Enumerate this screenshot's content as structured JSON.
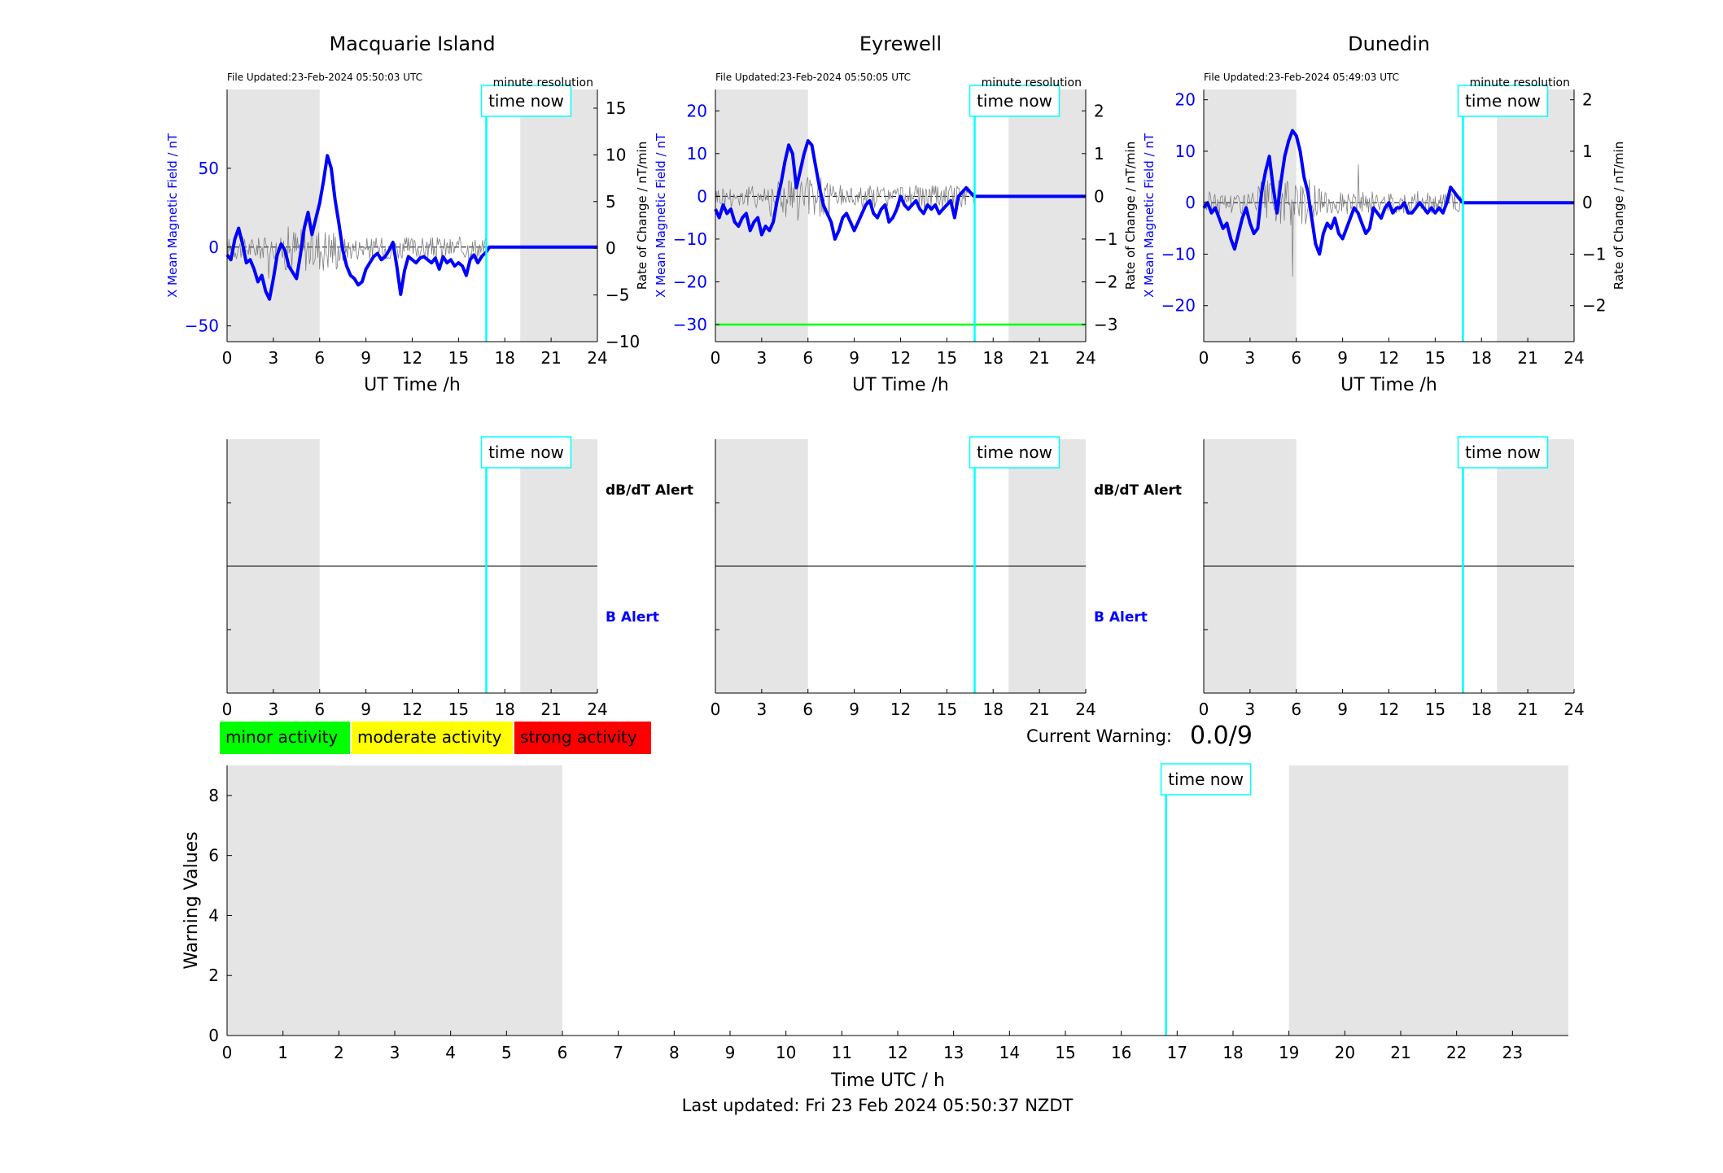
{
  "last_updated": "Last updated: Fri 23 Feb 2024 05:50:37 NZDT",
  "current_warning": {
    "label": "Current Warning:",
    "value": "0.0/9"
  },
  "legend": [
    {
      "label": "minor activity",
      "color": "#00ff00"
    },
    {
      "label": "moderate activity",
      "color": "#ffff00"
    },
    {
      "label": "strong activity",
      "color": "#ff0000"
    }
  ],
  "colors": {
    "shade": "#e5e5e5",
    "now_line": "#00ffff",
    "mag_line": "#0000ff",
    "roc_line": "#808080",
    "threshold": "#00ff00"
  },
  "time_now_label": "time now",
  "resolution_label": "minute resolution",
  "alert_labels": {
    "dbdt": "dB/dT Alert",
    "b": "B Alert"
  },
  "chart_data": [
    {
      "type": "line",
      "title": "Macquarie Island",
      "file_updated": "File Updated:23-Feb-2024 05:50:03 UTC",
      "xlabel": "UT Time /h",
      "ylabel_left": "X Mean Magnetic Field / nT",
      "ylabel_right": "Rate of Change / nT/min",
      "xlim": [
        0,
        24
      ],
      "xticks": [
        0,
        3,
        6,
        9,
        12,
        15,
        18,
        21,
        24
      ],
      "ylim_left": [
        -60,
        100
      ],
      "yticks_left": [
        -50,
        0,
        50
      ],
      "ylim_right": [
        -10,
        17
      ],
      "yticks_right": [
        -10,
        -5,
        0,
        5,
        10,
        15
      ],
      "shaded_hours": [
        [
          0,
          6
        ],
        [
          19,
          24
        ]
      ],
      "time_now": 16.8,
      "threshold": null,
      "series": [
        {
          "values_axis": "left",
          "x": [
            0,
            0.25,
            0.5,
            0.75,
            1,
            1.25,
            1.5,
            1.75,
            2,
            2.25,
            2.5,
            2.75,
            3,
            3.25,
            3.5,
            3.75,
            4,
            4.25,
            4.5,
            4.75,
            5,
            5.25,
            5.5,
            5.75,
            6,
            6.25,
            6.5,
            6.75,
            7,
            7.25,
            7.5,
            7.75,
            8,
            8.25,
            8.5,
            8.75,
            9,
            9.25,
            9.5,
            9.75,
            10,
            10.25,
            10.5,
            10.75,
            11,
            11.25,
            11.5,
            11.75,
            12,
            12.25,
            12.5,
            12.75,
            13,
            13.25,
            13.5,
            13.75,
            14,
            14.25,
            14.5,
            14.75,
            15,
            15.25,
            15.5,
            15.75,
            16,
            16.25,
            16.5,
            16.8,
            17,
            24
          ],
          "y": [
            -5,
            -8,
            5,
            12,
            2,
            -10,
            -8,
            -14,
            -22,
            -18,
            -28,
            -33,
            -20,
            -5,
            2,
            -2,
            -12,
            -16,
            -20,
            -5,
            12,
            22,
            8,
            18,
            28,
            42,
            58,
            50,
            30,
            15,
            -2,
            -12,
            -18,
            -20,
            -24,
            -22,
            -14,
            -10,
            -6,
            -4,
            -8,
            -6,
            -2,
            3,
            -12,
            -30,
            -15,
            -6,
            -8,
            -10,
            -7,
            -6,
            -8,
            -10,
            -7,
            -14,
            -6,
            -10,
            -8,
            -12,
            -10,
            -12,
            -18,
            -8,
            -5,
            -10,
            -6,
            -3,
            0,
            0
          ]
        }
      ]
    },
    {
      "type": "line",
      "title": "Eyrewell",
      "file_updated": "File Updated:23-Feb-2024 05:50:05 UTC",
      "xlabel": "UT Time /h",
      "ylabel_left": "X Mean Magnetic Field / nT",
      "ylabel_right": "Rate of Change / nT/min",
      "xlim": [
        0,
        24
      ],
      "xticks": [
        0,
        3,
        6,
        9,
        12,
        15,
        18,
        21,
        24
      ],
      "ylim_left": [
        -34,
        25
      ],
      "yticks_left": [
        -30,
        -20,
        -10,
        0,
        10,
        20
      ],
      "ylim_right": [
        -3.4,
        2.5
      ],
      "yticks_right": [
        -3,
        -2,
        -1,
        0,
        1,
        2
      ],
      "shaded_hours": [
        [
          0,
          6
        ],
        [
          19,
          24
        ]
      ],
      "time_now": 16.8,
      "threshold": -30,
      "series": [
        {
          "values_axis": "left",
          "x": [
            0,
            0.25,
            0.5,
            0.75,
            1,
            1.25,
            1.5,
            1.75,
            2,
            2.25,
            2.5,
            2.75,
            3,
            3.25,
            3.5,
            3.75,
            4,
            4.25,
            4.5,
            4.75,
            5,
            5.25,
            5.5,
            5.75,
            6,
            6.25,
            6.5,
            6.75,
            7,
            7.25,
            7.5,
            7.75,
            8,
            8.25,
            8.5,
            8.75,
            9,
            9.25,
            9.5,
            9.75,
            10,
            10.25,
            10.5,
            10.75,
            11,
            11.25,
            11.5,
            11.75,
            12,
            12.25,
            12.5,
            12.75,
            13,
            13.25,
            13.5,
            13.75,
            14,
            14.25,
            14.5,
            14.75,
            15,
            15.25,
            15.5,
            15.75,
            16,
            16.25,
            16.5,
            16.8,
            17,
            24
          ],
          "y": [
            -3,
            -5,
            -2,
            -4,
            -3,
            -6,
            -7,
            -5,
            -4,
            -8,
            -6,
            -5,
            -9,
            -7,
            -8,
            -6,
            -1,
            3,
            8,
            12,
            10,
            2,
            6,
            10,
            13,
            12,
            7,
            2,
            -2,
            -4,
            -6,
            -10,
            -8,
            -5,
            -4,
            -6,
            -8,
            -6,
            -4,
            -2,
            -1,
            -4,
            -5,
            -3,
            -2,
            -6,
            -5,
            -3,
            0,
            -2,
            -3,
            -2,
            -1,
            -3,
            -4,
            -2,
            -3,
            -2,
            -4,
            -3,
            -2,
            -1,
            -5,
            0,
            1,
            2,
            1,
            0,
            0,
            0
          ]
        }
      ]
    },
    {
      "type": "line",
      "title": "Dunedin",
      "file_updated": "File Updated:23-Feb-2024 05:49:03 UTC",
      "xlabel": "UT Time /h",
      "ylabel_left": "X Mean Magnetic Field / nT",
      "ylabel_right": "Rate of Change / nT/min",
      "xlim": [
        0,
        24
      ],
      "xticks": [
        0,
        3,
        6,
        9,
        12,
        15,
        18,
        21,
        24
      ],
      "ylim_left": [
        -27,
        22
      ],
      "yticks_left": [
        -20,
        -10,
        0,
        10,
        20
      ],
      "ylim_right": [
        -2.7,
        2.2
      ],
      "yticks_right": [
        -2,
        -1,
        0,
        1,
        2
      ],
      "shaded_hours": [
        [
          0,
          6
        ],
        [
          19,
          24
        ]
      ],
      "time_now": 16.8,
      "threshold": null,
      "series": [
        {
          "values_axis": "left",
          "x": [
            0,
            0.25,
            0.5,
            0.75,
            1,
            1.25,
            1.5,
            1.75,
            2,
            2.25,
            2.5,
            2.75,
            3,
            3.25,
            3.5,
            3.75,
            4,
            4.25,
            4.5,
            4.75,
            5,
            5.25,
            5.5,
            5.75,
            6,
            6.25,
            6.5,
            6.75,
            7,
            7.25,
            7.5,
            7.75,
            8,
            8.25,
            8.5,
            8.75,
            9,
            9.25,
            9.5,
            9.75,
            10,
            10.25,
            10.5,
            10.75,
            11,
            11.25,
            11.5,
            11.75,
            12,
            12.25,
            12.5,
            12.75,
            13,
            13.25,
            13.5,
            13.75,
            14,
            14.25,
            14.5,
            14.75,
            15,
            15.25,
            15.5,
            15.75,
            16,
            16.25,
            16.5,
            16.8,
            17,
            24
          ],
          "y": [
            -1,
            0,
            -2,
            -1,
            -3,
            -5,
            -4,
            -7,
            -9,
            -6,
            -3,
            -1,
            -4,
            -6,
            -5,
            2,
            6,
            9,
            3,
            -2,
            4,
            9,
            12,
            14,
            13,
            10,
            5,
            2,
            -3,
            -8,
            -10,
            -6,
            -4,
            -5,
            -3,
            -6,
            -7,
            -5,
            -3,
            -1,
            -2,
            -4,
            -6,
            -5,
            -1,
            -2,
            -3,
            -1,
            0,
            -2,
            -1,
            -1,
            0,
            -2,
            -2,
            -1,
            0,
            -1,
            -2,
            -1,
            -2,
            -1,
            -2,
            0,
            3,
            2,
            1,
            0,
            0,
            0
          ]
        }
      ]
    },
    {
      "type": "area",
      "title": "",
      "xlabel": "Time UTC / h",
      "ylabel": "Warning Values",
      "xlim": [
        0,
        24
      ],
      "xticks": [
        0,
        1,
        2,
        3,
        4,
        5,
        6,
        7,
        8,
        9,
        10,
        11,
        12,
        13,
        14,
        15,
        16,
        17,
        18,
        19,
        20,
        21,
        22,
        23
      ],
      "ylim": [
        0,
        9
      ],
      "yticks": [
        0,
        2,
        4,
        6,
        8
      ],
      "shaded_hours": [
        [
          0,
          6
        ],
        [
          19,
          24
        ]
      ],
      "time_now": 16.8,
      "series": [
        {
          "x": [
            0,
            16.8
          ],
          "y": [
            0,
            0
          ]
        }
      ]
    }
  ]
}
